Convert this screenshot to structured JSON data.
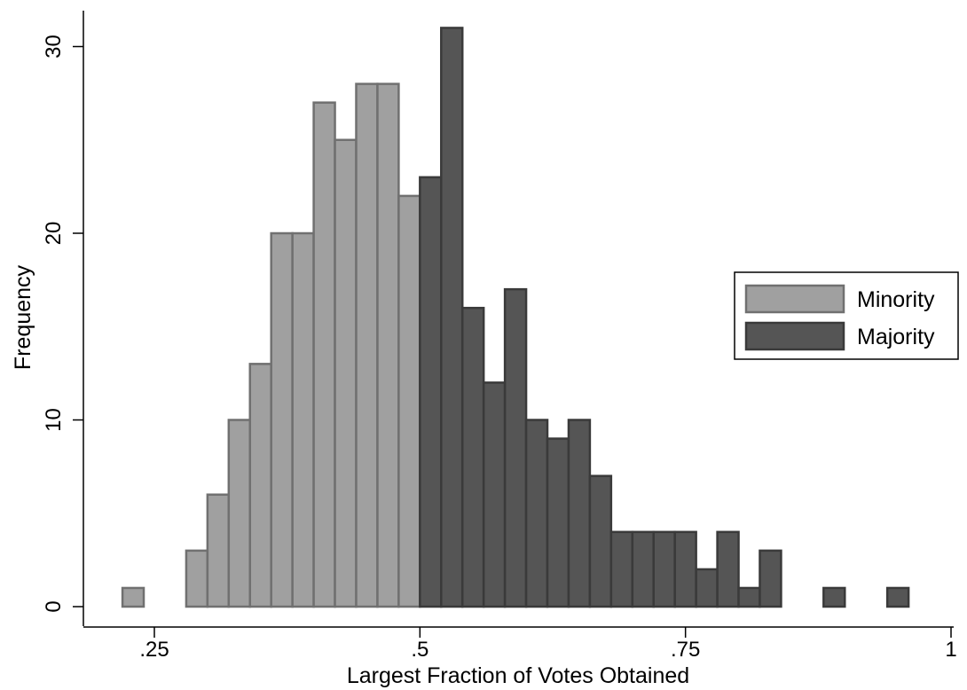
{
  "chart_data": {
    "type": "bar",
    "title": "",
    "xlabel": "Largest Fraction of Votes Obtained",
    "ylabel": "Frequency",
    "xlim": [
      0.18,
      1.0
    ],
    "ylim": [
      0,
      31
    ],
    "bin_width": 0.02,
    "x_ticks": [
      0.25,
      0.5,
      0.75,
      1.0
    ],
    "x_tick_labels": [
      ".25",
      ".5",
      ".75",
      "1"
    ],
    "y_ticks": [
      0,
      10,
      20,
      30
    ],
    "y_tick_labels": [
      "0",
      "10",
      "20",
      "30"
    ],
    "grid": false,
    "legend_position": "right",
    "series": [
      {
        "name": "Minority",
        "color": "#a0a0a0",
        "edge_color": "#707070",
        "bins": [
          {
            "x0": 0.22,
            "x1": 0.24,
            "value": 1
          },
          {
            "x0": 0.28,
            "x1": 0.3,
            "value": 3
          },
          {
            "x0": 0.3,
            "x1": 0.32,
            "value": 6
          },
          {
            "x0": 0.32,
            "x1": 0.34,
            "value": 10
          },
          {
            "x0": 0.34,
            "x1": 0.36,
            "value": 13
          },
          {
            "x0": 0.36,
            "x1": 0.38,
            "value": 20
          },
          {
            "x0": 0.38,
            "x1": 0.4,
            "value": 20
          },
          {
            "x0": 0.4,
            "x1": 0.42,
            "value": 27
          },
          {
            "x0": 0.42,
            "x1": 0.44,
            "value": 25
          },
          {
            "x0": 0.44,
            "x1": 0.46,
            "value": 28
          },
          {
            "x0": 0.46,
            "x1": 0.48,
            "value": 28
          },
          {
            "x0": 0.48,
            "x1": 0.5,
            "value": 22
          }
        ]
      },
      {
        "name": "Majority",
        "color": "#555555",
        "edge_color": "#3a3a3a",
        "bins": [
          {
            "x0": 0.5,
            "x1": 0.52,
            "value": 23
          },
          {
            "x0": 0.52,
            "x1": 0.54,
            "value": 31
          },
          {
            "x0": 0.54,
            "x1": 0.56,
            "value": 16
          },
          {
            "x0": 0.56,
            "x1": 0.58,
            "value": 12
          },
          {
            "x0": 0.58,
            "x1": 0.6,
            "value": 17
          },
          {
            "x0": 0.6,
            "x1": 0.62,
            "value": 10
          },
          {
            "x0": 0.62,
            "x1": 0.64,
            "value": 9
          },
          {
            "x0": 0.64,
            "x1": 0.66,
            "value": 10
          },
          {
            "x0": 0.66,
            "x1": 0.68,
            "value": 7
          },
          {
            "x0": 0.68,
            "x1": 0.7,
            "value": 4
          },
          {
            "x0": 0.7,
            "x1": 0.72,
            "value": 4
          },
          {
            "x0": 0.72,
            "x1": 0.74,
            "value": 4
          },
          {
            "x0": 0.74,
            "x1": 0.76,
            "value": 4
          },
          {
            "x0": 0.76,
            "x1": 0.78,
            "value": 2
          },
          {
            "x0": 0.78,
            "x1": 0.8,
            "value": 4
          },
          {
            "x0": 0.8,
            "x1": 0.82,
            "value": 1
          },
          {
            "x0": 0.82,
            "x1": 0.84,
            "value": 3
          },
          {
            "x0": 0.88,
            "x1": 0.9,
            "value": 1
          },
          {
            "x0": 0.94,
            "x1": 0.96,
            "value": 1
          }
        ]
      }
    ]
  }
}
